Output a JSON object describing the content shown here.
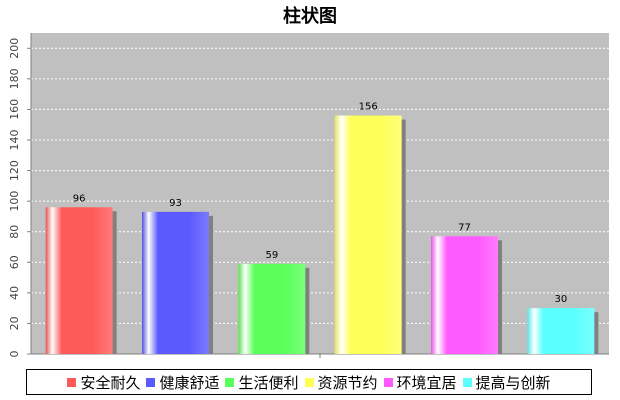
{
  "chart_data": {
    "type": "bar",
    "title": "柱状图",
    "categories": [
      "安全耐久",
      "健康舒适",
      "生活便利",
      "资源节约",
      "环境宜居",
      "提高与创新"
    ],
    "values": [
      96,
      93,
      59,
      156,
      77,
      30
    ],
    "colors": [
      "#ff5a5a",
      "#5a5aff",
      "#5aff5a",
      "#ffff5a",
      "#ff5aff",
      "#5affff"
    ],
    "ylim": [
      0,
      210
    ],
    "yticks": [
      0,
      20,
      40,
      60,
      80,
      100,
      120,
      140,
      160,
      180,
      200
    ],
    "grid": true,
    "legend_position": "bottom",
    "plot_background": "#c0c0c0"
  }
}
